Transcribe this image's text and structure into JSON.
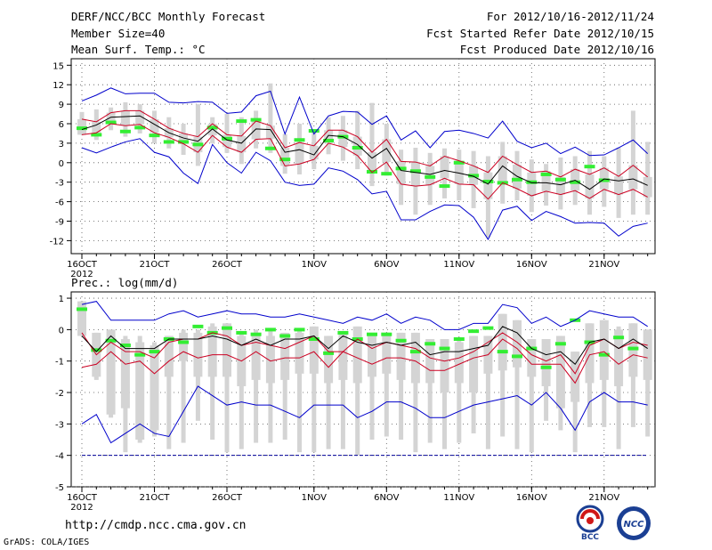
{
  "header": {
    "title": "DERF/NCC/BCC Monthly Forecast",
    "member": "Member Size=40",
    "variable": "Mean Surf. Temp.: °C",
    "period": "For 2012/10/16-2012/11/24",
    "started": "Fcst Started Refer Date 2012/10/15",
    "produced": "Fcst Produced Date 2012/10/16"
  },
  "footer": {
    "url": "http://cmdp.ncc.cma.gov.cn",
    "credit": "GrADS: COLA/IGES",
    "logo1_text": "BCC",
    "logo2_text": "NCC"
  },
  "colors": {
    "max": "#0000cc",
    "ens": "#cc0022",
    "mean": "#000000",
    "obs": "#33ee33",
    "box": "#d4d4d4",
    "dashed": "#000099"
  },
  "chart_data": [
    {
      "type": "line",
      "title": "Mean Surf. Temp.: °C",
      "ylim": [
        -14,
        16
      ],
      "yticks": [
        15,
        12,
        9,
        6,
        3,
        0,
        -3,
        -6,
        -9,
        -12
      ],
      "xticks": [
        {
          "day": 0,
          "label": "16OCT",
          "sub": "2012"
        },
        {
          "day": 5,
          "label": "21OCT"
        },
        {
          "day": 10,
          "label": "26OCT"
        },
        {
          "day": 16,
          "label": "1NOV"
        },
        {
          "day": 21,
          "label": "6NOV"
        },
        {
          "day": 26,
          "label": "11NOV"
        },
        {
          "day": 31,
          "label": "16NOV"
        },
        {
          "day": 36,
          "label": "21NOV"
        }
      ],
      "series": [
        {
          "name": "ensemble max",
          "color": "#0000cc",
          "values": [
            9.5,
            10.4,
            11.5,
            10.6,
            10.7,
            10.7,
            9.3,
            9.2,
            9.4,
            9.3,
            7.6,
            7.8,
            10.3,
            11.0,
            4.4,
            10.1,
            4.4,
            7.2,
            7.9,
            7.8,
            5.9,
            7.2,
            3.5,
            4.9,
            2.3,
            4.8,
            5.0,
            4.5,
            3.8,
            6.4,
            3.3,
            2.3,
            3.0,
            1.4,
            2.4,
            1.1,
            1.2,
            2.3,
            3.5,
            1.4
          ]
        },
        {
          "name": "upper ensemble",
          "color": "#cc0022",
          "values": [
            6.7,
            6.3,
            7.7,
            8.0,
            8.0,
            6.7,
            5.3,
            4.5,
            4.0,
            6.0,
            4.3,
            4.1,
            6.4,
            5.7,
            2.3,
            3.1,
            2.6,
            5.0,
            5.0,
            4.0,
            1.6,
            3.6,
            0.2,
            0.1,
            -0.5,
            1.0,
            0.3,
            -0.5,
            -1.5,
            1.0,
            -0.3,
            -1.5,
            -1.3,
            -2.2,
            -1.0,
            -1.8,
            -0.8,
            -2.1,
            -0.4,
            -2.2
          ]
        },
        {
          "name": "ensemble mean",
          "color": "#000000",
          "values": [
            5.1,
            5.8,
            7.0,
            7.1,
            7.2,
            5.9,
            4.6,
            3.8,
            3.3,
            5.2,
            3.5,
            3.0,
            5.2,
            5.1,
            1.6,
            2.0,
            1.2,
            4.2,
            4.0,
            2.8,
            0.7,
            2.2,
            -1.2,
            -1.5,
            -1.8,
            -1.2,
            -1.6,
            -2.1,
            -3.3,
            -0.5,
            -2.1,
            -3.1,
            -3.1,
            -3.4,
            -2.7,
            -4.1,
            -2.5,
            -2.8,
            -2.5,
            -3.5
          ]
        },
        {
          "name": "lower ensemble",
          "color": "#cc0022",
          "values": [
            4.3,
            4.6,
            6.0,
            5.7,
            5.9,
            4.6,
            3.9,
            2.9,
            1.6,
            4.2,
            2.4,
            1.6,
            3.6,
            3.7,
            -0.5,
            -0.2,
            0.5,
            3.0,
            2.4,
            1.1,
            -1.5,
            0.1,
            -3.3,
            -3.6,
            -3.4,
            -2.4,
            -3.3,
            -3.4,
            -5.6,
            -3.1,
            -4.0,
            -5.1,
            -4.4,
            -4.9,
            -4.3,
            -5.5,
            -4.1,
            -4.9,
            -4.1,
            -5.3
          ]
        },
        {
          "name": "ensemble min",
          "color": "#0000cc",
          "values": [
            2.3,
            1.5,
            2.4,
            3.2,
            3.7,
            1.6,
            0.9,
            -1.6,
            -3.2,
            2.8,
            0.0,
            -1.6,
            1.6,
            0.3,
            -3.0,
            -3.5,
            -3.3,
            -0.8,
            -1.3,
            -2.6,
            -4.8,
            -4.4,
            -8.8,
            -8.8,
            -7.5,
            -6.5,
            -6.6,
            -8.4,
            -11.8,
            -7.3,
            -6.7,
            -8.9,
            -7.5,
            -8.3,
            -9.3,
            -9.2,
            -9.3,
            -11.3,
            -9.8,
            -9.3
          ]
        }
      ],
      "boxes": {
        "upper": [
          6.7,
          6.3,
          7.7,
          8.0,
          8.0,
          6.7,
          5.3,
          4.5,
          4.0,
          6.0,
          4.3,
          4.1,
          6.4,
          5.7,
          2.3,
          3.1,
          2.6,
          5.0,
          5.0,
          4.0,
          1.6,
          3.6,
          0.2,
          0.1,
          -0.5,
          1.0,
          0.3,
          -0.5,
          -1.5,
          1.0,
          -0.3,
          -1.5,
          -1.3,
          -2.2,
          -1.0,
          -1.8,
          -0.8,
          -2.1,
          -0.4,
          -2.2
        ],
        "lower": [
          4.3,
          4.6,
          6.0,
          5.7,
          5.9,
          4.6,
          3.9,
          2.9,
          1.6,
          4.2,
          2.4,
          1.6,
          3.6,
          3.7,
          -0.5,
          -0.2,
          0.5,
          3.0,
          2.4,
          1.1,
          -1.5,
          0.1,
          -3.3,
          -3.6,
          -3.4,
          -2.4,
          -3.3,
          -3.4,
          -5.6,
          -3.1,
          -4.0,
          -5.1,
          -4.4,
          -4.9,
          -4.3,
          -5.5,
          -4.1,
          -4.9,
          -4.1,
          -5.3
        ],
        "top": [
          7.8,
          8.2,
          8.5,
          9.3,
          9.0,
          8.0,
          7.0,
          6.0,
          9.0,
          7.0,
          7.5,
          7.0,
          8.0,
          12.2,
          4.4,
          6.0,
          5.0,
          7.0,
          7.2,
          8.0,
          9.2,
          6.0,
          2.0,
          2.3,
          1.5,
          2.2,
          2.0,
          1.8,
          1.0,
          3.2,
          1.8,
          0.5,
          -0.2,
          0.8,
          1.0,
          1.8,
          1.0,
          2.3,
          8.0,
          3.2
        ],
        "bottom": [
          4.3,
          3.5,
          5.0,
          4.0,
          4.5,
          3.0,
          2.2,
          1.2,
          -0.5,
          3.0,
          1.5,
          -0.2,
          2.2,
          1.5,
          -1.7,
          -1.8,
          -1.0,
          1.3,
          0.3,
          -1.0,
          -3.6,
          -2.0,
          -6.5,
          -8.0,
          -6.5,
          -5.5,
          -5.8,
          -7.0,
          -11.5,
          -6.3,
          -5.8,
          -7.6,
          -6.6,
          -7.2,
          -6.5,
          -8.0,
          -6.8,
          -8.5,
          -8.0,
          -8.0
        ]
      },
      "observed": [
        5.3,
        4.3,
        6.2,
        4.8,
        5.4,
        4.2,
        3.2,
        3.2,
        2.8,
        5.4,
        3.7,
        6.4,
        6.6,
        2.2,
        0.5,
        3.5,
        4.9,
        3.4,
        4.0,
        2.3,
        -1.4,
        -1.7,
        -0.9,
        -1.3,
        -2.2,
        -3.6,
        0.0,
        -2.0,
        -2.9,
        -3.1,
        -2.6,
        -3.0,
        -1.8,
        -2.6,
        -3.0,
        -0.6,
        -2.7
      ]
    },
    {
      "type": "line",
      "title": "Prec.: log(mm/d)",
      "ylim": [
        -5,
        1.2
      ],
      "yticks": [
        1,
        0,
        -1,
        -2,
        -3,
        -4,
        -5
      ],
      "xticks": [
        {
          "day": 0,
          "label": "16OCT",
          "sub": "2012"
        },
        {
          "day": 5,
          "label": "21OCT"
        },
        {
          "day": 10,
          "label": "26OCT"
        },
        {
          "day": 16,
          "label": "1NOV"
        },
        {
          "day": 21,
          "label": "6NOV"
        },
        {
          "day": 26,
          "label": "11NOV"
        },
        {
          "day": 31,
          "label": "16NOV"
        },
        {
          "day": 36,
          "label": "21NOV"
        }
      ],
      "series": [
        {
          "name": "ensemble max",
          "color": "#0000cc",
          "values": [
            0.8,
            0.9,
            0.3,
            0.3,
            0.3,
            0.3,
            0.5,
            0.6,
            0.4,
            0.5,
            0.6,
            0.5,
            0.5,
            0.4,
            0.4,
            0.5,
            0.4,
            0.3,
            0.2,
            0.4,
            0.3,
            0.5,
            0.2,
            0.4,
            0.3,
            0.0,
            0.0,
            0.2,
            0.2,
            0.8,
            0.7,
            0.2,
            0.4,
            0.1,
            0.3,
            0.6,
            0.5,
            0.4,
            0.4,
            0.1
          ]
        },
        {
          "name": "upper ensemble",
          "color": "#cc0022",
          "values": [
            -0.1,
            -0.8,
            -0.4,
            -0.7,
            -0.7,
            -0.9,
            -0.4,
            -0.3,
            -0.3,
            -0.1,
            -0.2,
            -0.5,
            -0.4,
            -0.5,
            -0.6,
            -0.4,
            -0.2,
            -0.7,
            -0.7,
            -0.3,
            -0.6,
            -0.4,
            -0.5,
            -0.6,
            -0.9,
            -1.0,
            -0.9,
            -0.7,
            -0.4,
            -0.1,
            -0.4,
            -0.8,
            -1.0,
            -0.8,
            -1.4,
            -0.5,
            -0.3,
            -0.6,
            -0.4,
            -0.5
          ]
        },
        {
          "name": "ensemble mean",
          "color": "#000000",
          "values": [
            -0.2,
            -0.7,
            -0.2,
            -0.6,
            -0.6,
            -0.6,
            -0.3,
            -0.3,
            -0.3,
            -0.2,
            -0.3,
            -0.5,
            -0.3,
            -0.5,
            -0.3,
            -0.3,
            -0.2,
            -0.6,
            -0.2,
            -0.4,
            -0.5,
            -0.4,
            -0.5,
            -0.4,
            -0.8,
            -0.7,
            -0.7,
            -0.6,
            -0.5,
            0.1,
            -0.1,
            -0.6,
            -0.8,
            -0.7,
            -1.1,
            -0.4,
            -0.3,
            -0.6,
            -0.3,
            -0.6
          ]
        },
        {
          "name": "lower ensemble",
          "color": "#cc0022",
          "values": [
            -1.2,
            -1.1,
            -0.7,
            -1.1,
            -1.0,
            -1.4,
            -1.0,
            -0.7,
            -0.9,
            -0.8,
            -0.8,
            -1.0,
            -0.7,
            -1.0,
            -0.9,
            -0.9,
            -0.7,
            -1.2,
            -0.7,
            -0.9,
            -1.1,
            -0.9,
            -0.9,
            -1.0,
            -1.3,
            -1.3,
            -1.1,
            -0.9,
            -0.8,
            -0.3,
            -0.6,
            -1.1,
            -1.1,
            -1.1,
            -1.7,
            -0.8,
            -0.7,
            -1.1,
            -0.8,
            -0.9
          ]
        },
        {
          "name": "ensemble min",
          "color": "#0000cc",
          "values": [
            -3.0,
            -2.7,
            -3.6,
            -3.3,
            -3.0,
            -3.3,
            -3.4,
            -2.6,
            -1.8,
            -2.1,
            -2.4,
            -2.3,
            -2.4,
            -2.4,
            -2.6,
            -2.8,
            -2.4,
            -2.4,
            -2.4,
            -2.8,
            -2.6,
            -2.3,
            -2.3,
            -2.5,
            -2.8,
            -2.8,
            -2.6,
            -2.4,
            -2.3,
            -2.2,
            -2.1,
            -2.4,
            -2.0,
            -2.5,
            -3.2,
            -2.3,
            -2.0,
            -2.3,
            -2.3,
            -2.4
          ]
        },
        {
          "name": "lower bound",
          "color": "#000099",
          "dashed": true,
          "values": [
            -4,
            -4,
            -4,
            -4,
            -4,
            -4,
            -4,
            -4,
            -4,
            -4,
            -4,
            -4,
            -4,
            -4,
            -4,
            -4,
            -4,
            -4,
            -4,
            -4,
            -4,
            -4,
            -4,
            -4,
            -4,
            -4,
            -4,
            -4,
            -4,
            -4,
            -4,
            -4,
            -4,
            -4,
            -4,
            -4,
            -4,
            -4,
            -4,
            -4
          ]
        }
      ],
      "boxes": {
        "upper": [
          0.9,
          -0.1,
          0.0,
          -0.3,
          -0.4,
          -0.5,
          -0.2,
          -0.1,
          -0.1,
          0.1,
          0.2,
          -0.2,
          -0.1,
          -0.2,
          -0.1,
          -0.1,
          0.1,
          -0.2,
          -0.1,
          0.1,
          -0.1,
          -0.1,
          -0.1,
          -0.1,
          -0.3,
          -0.3,
          -0.4,
          -0.2,
          -0.2,
          0.5,
          0.3,
          -0.3,
          -0.3,
          -0.2,
          -0.7,
          0.2,
          0.3,
          0.0,
          0.2,
          0.0
        ],
        "lower": [
          -0.2,
          -1.5,
          -2.7,
          -2.5,
          -3.5,
          -3.2,
          -1.5,
          -1.0,
          -1.5,
          -1.5,
          -1.5,
          -1.8,
          -1.6,
          -1.7,
          -1.6,
          -1.4,
          -1.4,
          -1.7,
          -1.6,
          -1.7,
          -1.5,
          -1.4,
          -1.6,
          -1.7,
          -1.7,
          -2.0,
          -1.7,
          -2.0,
          -1.4,
          -1.3,
          -1.2,
          -1.5,
          -1.8,
          -2.5,
          -2.3,
          -1.7,
          -1.6,
          -1.8,
          -1.5,
          -1.6
        ],
        "top": [
          0.9,
          -0.1,
          0.0,
          -0.2,
          -0.2,
          -0.4,
          -0.2,
          0.0,
          0.0,
          0.2,
          0.2,
          -0.1,
          0.0,
          0.0,
          -0.1,
          0.0,
          0.1,
          -0.2,
          -0.1,
          0.1,
          -0.1,
          -0.1,
          -0.1,
          -0.1,
          -0.3,
          -0.3,
          -0.3,
          -0.2,
          -0.2,
          0.5,
          0.3,
          -0.3,
          -0.3,
          -0.2,
          -0.7,
          0.2,
          0.3,
          0.1,
          0.2,
          0.0
        ],
        "bottom": [
          -0.2,
          -1.6,
          -2.8,
          -3.9,
          -3.6,
          -3.4,
          -3.8,
          -3.6,
          -2.9,
          -3.5,
          -3.9,
          -3.8,
          -3.6,
          -3.6,
          -3.5,
          -3.9,
          -3.9,
          -3.8,
          -3.8,
          -4.0,
          -3.5,
          -3.4,
          -3.5,
          -3.9,
          -3.6,
          -3.8,
          -3.6,
          -3.3,
          -3.8,
          -3.4,
          -3.8,
          -3.9,
          -2.9,
          -3.2,
          -3.9,
          -3.1,
          -3.1,
          -3.8,
          -3.1,
          -3.4
        ]
      },
      "observed": [
        0.65,
        -0.65,
        -0.35,
        -0.5,
        -0.8,
        -0.7,
        -0.3,
        -0.4,
        0.1,
        -0.1,
        0.05,
        -0.1,
        -0.15,
        0.0,
        -0.2,
        0.0,
        -0.3,
        -0.75,
        -0.1,
        -0.3,
        -0.15,
        -0.15,
        -0.35,
        -0.7,
        -0.45,
        -0.6,
        -0.3,
        -0.05,
        0.05,
        -0.7,
        -0.85,
        -0.6,
        -1.2,
        -0.45,
        0.3,
        -0.4,
        -0.8,
        -0.25,
        -0.6
      ]
    }
  ]
}
